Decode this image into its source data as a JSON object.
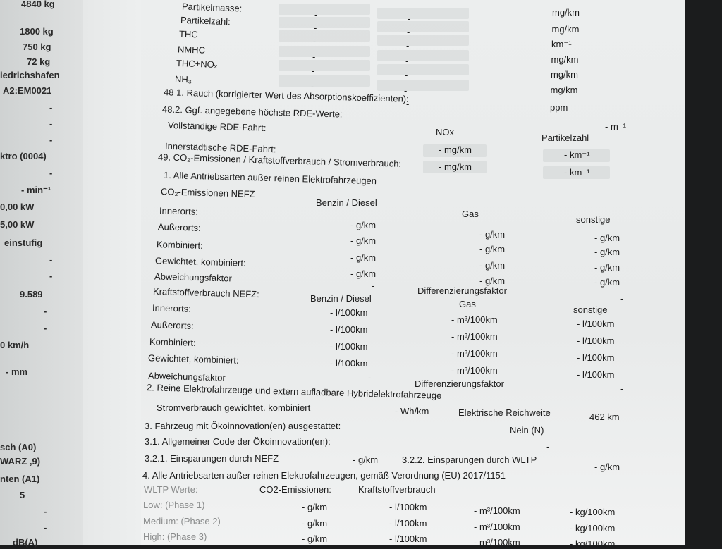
{
  "left_column": [
    "4840  kg",
    "1800  kg",
    "750  kg",
    "72  kg",
    "iedrichshafen",
    "A2:EM0021",
    "-",
    "-",
    "-",
    "ktro (0004)",
    "-",
    "- min⁻¹",
    "0,00  kW",
    "5,00  kW",
    "einstufig",
    "-",
    "-",
    "9.589",
    "-",
    "-",
    "0  km/h",
    "-  mm",
    "sch (A0)",
    "WARZ ,9)",
    "nten (A1)",
    "5",
    "-",
    "-",
    "dB(A)"
  ],
  "emissions": {
    "labels": [
      "Partikelmasse:",
      "Partikelzahl:",
      "THC",
      "NMHC",
      "THC+NOₓ",
      "NH₃"
    ],
    "units": [
      "mg/km",
      "mg/km",
      "km⁻¹",
      "mg/km",
      "mg/km",
      "mg/km",
      "ppm"
    ],
    "dash": "-"
  },
  "rauch": {
    "label": "48 1. Rauch (korrigierter Wert des Absorptionskoeffizienten):",
    "value": "-  m⁻¹"
  },
  "rde": {
    "heading": "48.2. Ggf. angegebene höchste RDE-Werte:",
    "full": "Vollständige RDE-Fahrt:",
    "urban": "Innerstädtische RDE-Fahrt:",
    "col_nox": "NOx",
    "col_pn": "Partikelzahl",
    "nox_full": "-  mg/km",
    "nox_urban": "-  mg/km",
    "pn_full": "-  km⁻¹",
    "pn_urban": "-  km⁻¹"
  },
  "section49": {
    "heading": "49. CO₂-Emissionen / Kraftstoffverbrauch / Stromverbrauch:",
    "sub1": "1. Alle Antriebsarten außer reinen Elektrofahrzeugen",
    "co2_title": "CO₂-Emissionen NEFZ",
    "col_benzin": "Benzin / Diesel",
    "col_gas": "Gas",
    "col_sonstige": "sonstige",
    "rows": [
      "Innerorts:",
      "Außerorts:",
      "Kombiniert:",
      "Gewichtet, kombiniert:"
    ],
    "gkm": "-  g/km",
    "abweichung": "Abweichungsfaktor",
    "differenzierung": "Differenzierungsfaktor",
    "fuel_title": "Kraftstoffverbrauch NEFZ:",
    "l100": "-  l/100km",
    "m3100": "-  m³/100km",
    "sub2": "2. Reine Elektrofahrzeuge und extern aufladbare Hybridelektrofahrzeuge",
    "strom": "Stromverbrauch   gewichtet. kombiniert",
    "strom_val": "-  Wh/km",
    "reichweite": "Elektrische Reichweite",
    "reichweite_val": "462   km",
    "oeko": "3. Fahrzeug mit Ökoinnovation(en) ausgestattet:",
    "oeko_val": "Nein (N)",
    "oeko_code": "3.1. Allgemeiner Code der Ökoinnovation(en):",
    "nefz_savings": "3.2.1. Einsparungen durch NEFZ",
    "wltp_savings": "3.2.2. Einsparungen durch WLTP",
    "sub4": "4. Alle Antriebsarten außer reinen Elektrofahrzeugen, gemäß Verordnung (EU) 2017/1151",
    "wltp_title": "WLTP Werte:",
    "wltp_co2": "CO2-Emissionen:",
    "wltp_fuel": "Kraftstoffverbrauch",
    "phases": [
      "Low: (Phase 1)",
      "Medium: (Phase 2)",
      "High: (Phase 3)"
    ],
    "kg100": "-  kg/100km"
  }
}
